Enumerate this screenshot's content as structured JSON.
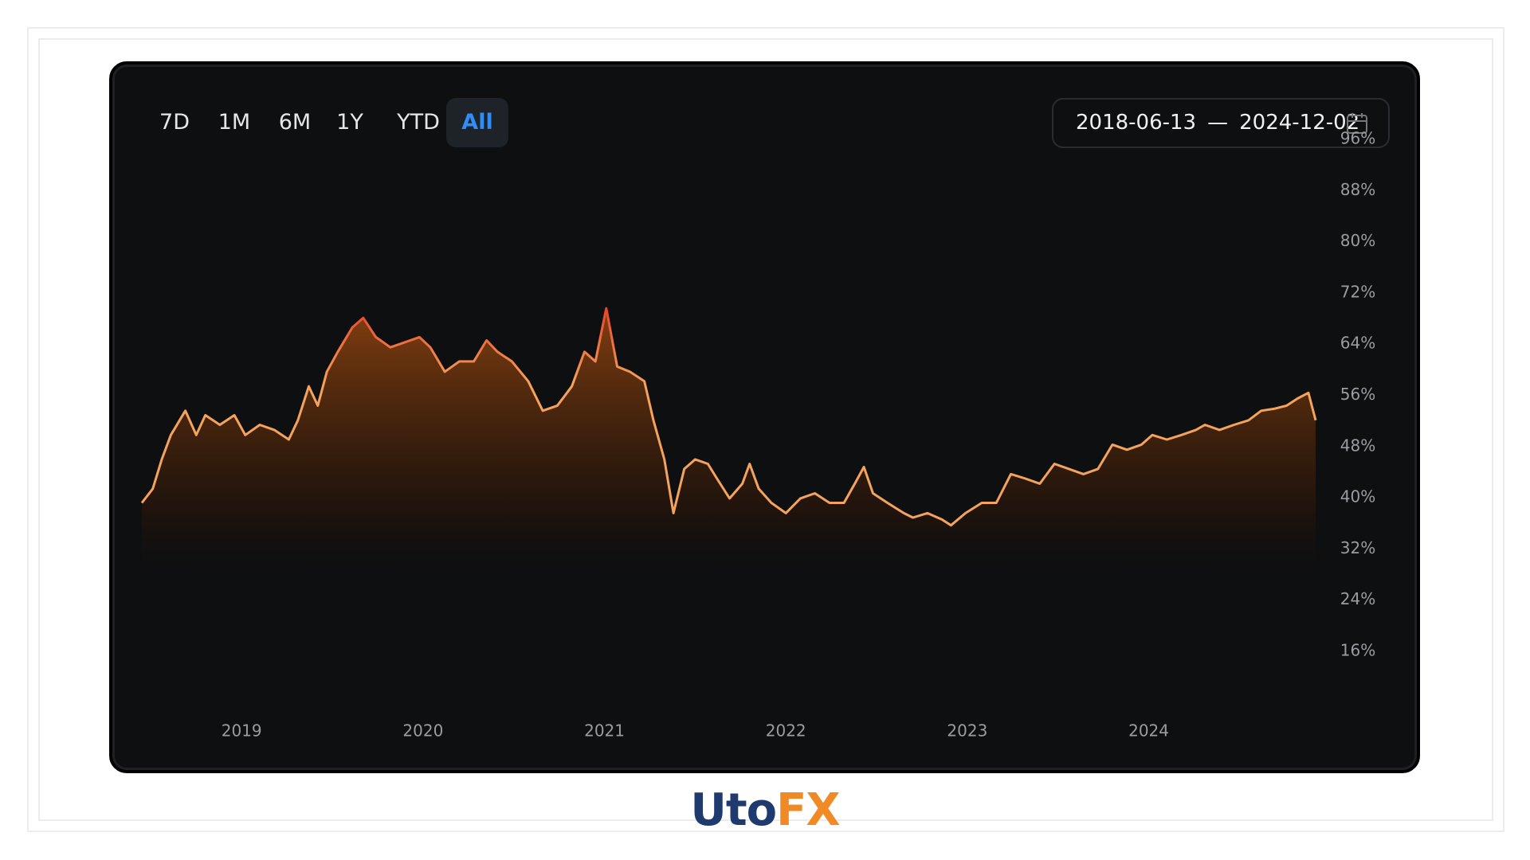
{
  "buttons": [
    "7D",
    "1M",
    "6M",
    "1Y",
    "YTD",
    "All"
  ],
  "selected_index": 5,
  "date_range": {
    "start": "2018-06-13",
    "separator": "—",
    "end": "2024-12-02"
  },
  "logo": [
    "Uto",
    "FX"
  ],
  "chart_data": {
    "type": "line",
    "x": [
      2018.45,
      2018.51,
      2018.56,
      2018.61,
      2018.69,
      2018.75,
      2018.8,
      2018.88,
      2018.96,
      2019.02,
      2019.1,
      2019.18,
      2019.26,
      2019.31,
      2019.37,
      2019.42,
      2019.47,
      2019.53,
      2019.61,
      2019.67,
      2019.74,
      2019.82,
      2019.9,
      2019.98,
      2020.04,
      2020.12,
      2020.2,
      2020.28,
      2020.35,
      2020.41,
      2020.49,
      2020.58,
      2020.66,
      2020.74,
      2020.82,
      2020.89,
      2020.95,
      2021.01,
      2021.07,
      2021.14,
      2021.22,
      2021.27,
      2021.33,
      2021.38,
      2021.44,
      2021.5,
      2021.57,
      2021.62,
      2021.69,
      2021.76,
      2021.8,
      2021.85,
      2021.92,
      2022.0,
      2022.08,
      2022.16,
      2022.24,
      2022.32,
      2022.38,
      2022.43,
      2022.48,
      2022.56,
      2022.65,
      2022.7,
      2022.78,
      2022.86,
      2022.91,
      2022.99,
      2023.08,
      2023.16,
      2023.24,
      2023.32,
      2023.4,
      2023.48,
      2023.56,
      2023.64,
      2023.72,
      2023.8,
      2023.88,
      2023.96,
      2024.02,
      2024.1,
      2024.18,
      2024.26,
      2024.31,
      2024.39,
      2024.47,
      2024.55,
      2024.62,
      2024.69,
      2024.76,
      2024.82,
      2024.88,
      2024.92
    ],
    "values": [
      39.2,
      41.4,
      46.0,
      49.8,
      53.6,
      49.8,
      52.9,
      51.4,
      52.9,
      49.8,
      51.4,
      50.6,
      49.1,
      52.1,
      57.4,
      54.4,
      59.7,
      62.8,
      66.6,
      68.1,
      65.1,
      63.5,
      64.3,
      65.1,
      63.5,
      59.7,
      61.3,
      61.3,
      64.6,
      62.8,
      61.3,
      58.2,
      53.6,
      54.4,
      57.4,
      62.8,
      61.3,
      69.6,
      60.5,
      59.7,
      58.2,
      52.1,
      46.0,
      37.6,
      44.5,
      46.0,
      45.3,
      43.0,
      39.9,
      42.2,
      45.3,
      41.4,
      39.2,
      37.6,
      39.9,
      40.7,
      39.2,
      39.2,
      42.2,
      44.8,
      40.7,
      39.2,
      37.6,
      36.9,
      37.6,
      36.6,
      35.7,
      37.6,
      39.2,
      39.2,
      43.7,
      43.0,
      42.2,
      45.3,
      44.5,
      43.7,
      44.5,
      48.3,
      47.5,
      48.3,
      49.8,
      49.1,
      49.8,
      50.6,
      51.4,
      50.6,
      51.4,
      52.1,
      53.6,
      53.9,
      54.4,
      55.5,
      56.4,
      52.1
    ],
    "color": "#f5a35c",
    "peak_color": "#e8452c",
    "xlim": [
      2018.45,
      2024.92
    ],
    "xticks": [
      2019,
      2020,
      2021,
      2022,
      2023,
      2024
    ],
    "ylim": [
      16,
      96
    ],
    "yticks": [
      {
        "value": 16,
        "label": "16%"
      },
      {
        "value": 24,
        "label": "24%"
      },
      {
        "value": 32,
        "label": "32%"
      },
      {
        "value": 40,
        "label": "40%"
      },
      {
        "value": 48,
        "label": "48%"
      },
      {
        "value": 56,
        "label": "56%"
      },
      {
        "value": 64,
        "label": "64%"
      },
      {
        "value": 72,
        "label": "72%"
      },
      {
        "value": 80,
        "label": "80%"
      },
      {
        "value": 88,
        "label": "88%"
      },
      {
        "value": 96,
        "label": "96%"
      }
    ],
    "grid": false
  }
}
